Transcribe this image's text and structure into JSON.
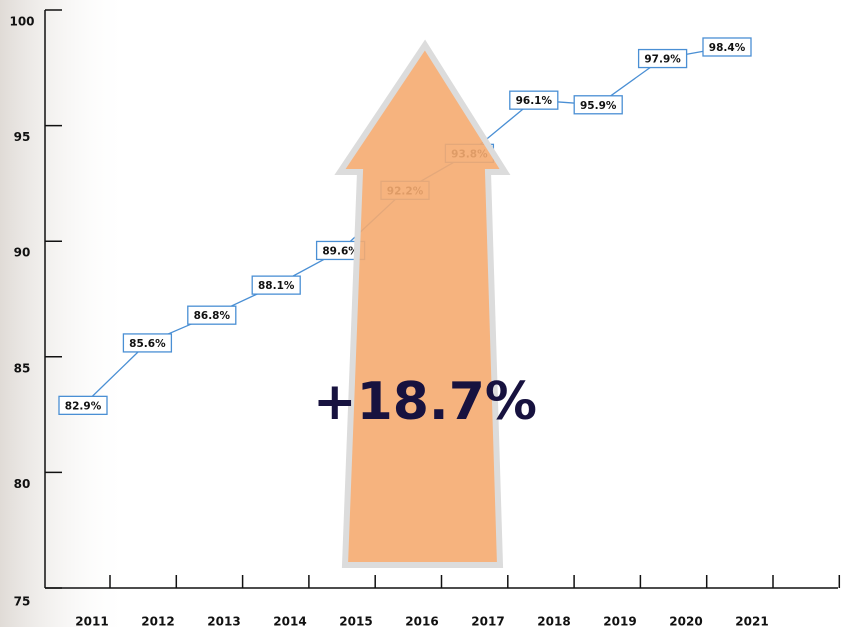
{
  "chart_data": {
    "type": "line",
    "categories": [
      "2011",
      "2012",
      "2013",
      "2014",
      "2015",
      "2016",
      "2017",
      "2018",
      "2019",
      "2020",
      "2021"
    ],
    "values": [
      82.9,
      85.6,
      86.8,
      88.1,
      89.6,
      92.2,
      93.8,
      96.1,
      95.9,
      97.9,
      98.4
    ],
    "value_labels": [
      "82.9%",
      "85.6%",
      "86.8%",
      "88.1%",
      "89.6%",
      "92.2%",
      "93.8%",
      "96.1%",
      "95.9%",
      "97.9%",
      "98.4%"
    ],
    "color": "#4a8fd4",
    "annotation": "+18.7%",
    "ylim": [
      75,
      100
    ],
    "yticks": [
      75,
      80,
      85,
      90,
      95,
      100
    ]
  }
}
